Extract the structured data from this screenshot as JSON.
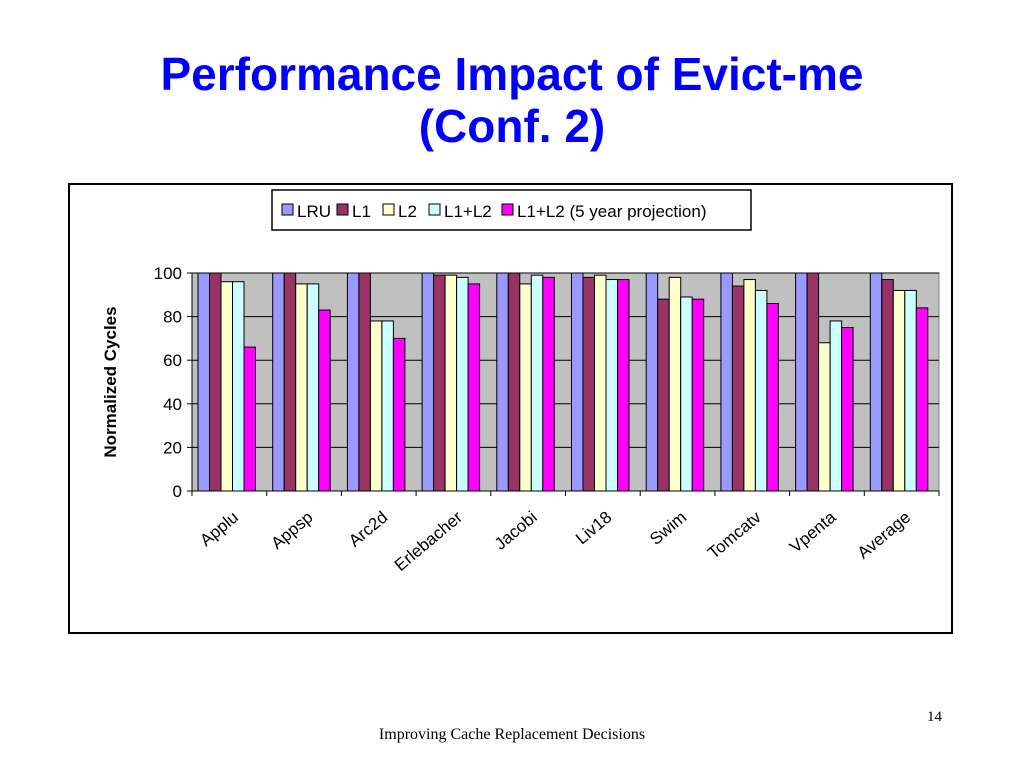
{
  "slide": {
    "title_line1": "Performance Impact of Evict-me",
    "title_line2": "(Conf. 2)",
    "page_number": "14",
    "footer": "Improving Cache Replacement Decisions"
  },
  "chart_data": {
    "type": "bar",
    "title": "",
    "xlabel": "",
    "ylabel": "Normalized Cycles",
    "ylim": [
      0,
      100
    ],
    "yticks": [
      "0",
      "20",
      "40",
      "60",
      "80",
      "100"
    ],
    "grid": true,
    "legend_position": "top",
    "categories": [
      "Applu",
      "Appsp",
      "Arc2d",
      "Erlebacher",
      "Jacobi",
      "Liv18",
      "Swim",
      "Tomcatv",
      "Vpenta",
      "Average"
    ],
    "series": [
      {
        "name": "LRU",
        "color": "#9999ff",
        "values": [
          100,
          100,
          100,
          100,
          100,
          100,
          100,
          100,
          100,
          100
        ]
      },
      {
        "name": "L1",
        "color": "#993366",
        "values": [
          100,
          100,
          100,
          99,
          100,
          98,
          88,
          94,
          100,
          97
        ]
      },
      {
        "name": "L2",
        "color": "#ffffcc",
        "values": [
          96,
          95,
          78,
          99,
          95,
          99,
          98,
          97,
          68,
          92
        ]
      },
      {
        "name": "L1+L2",
        "color": "#ccffff",
        "values": [
          96,
          95,
          78,
          98,
          99,
          97,
          89,
          92,
          78,
          92
        ]
      },
      {
        "name": "L1+L2 (5 year projection)",
        "color": "#ff00ff",
        "values": [
          66,
          83,
          70,
          95,
          98,
          97,
          88,
          86,
          75,
          84
        ]
      }
    ],
    "plot_background": "#c0c0c0"
  }
}
